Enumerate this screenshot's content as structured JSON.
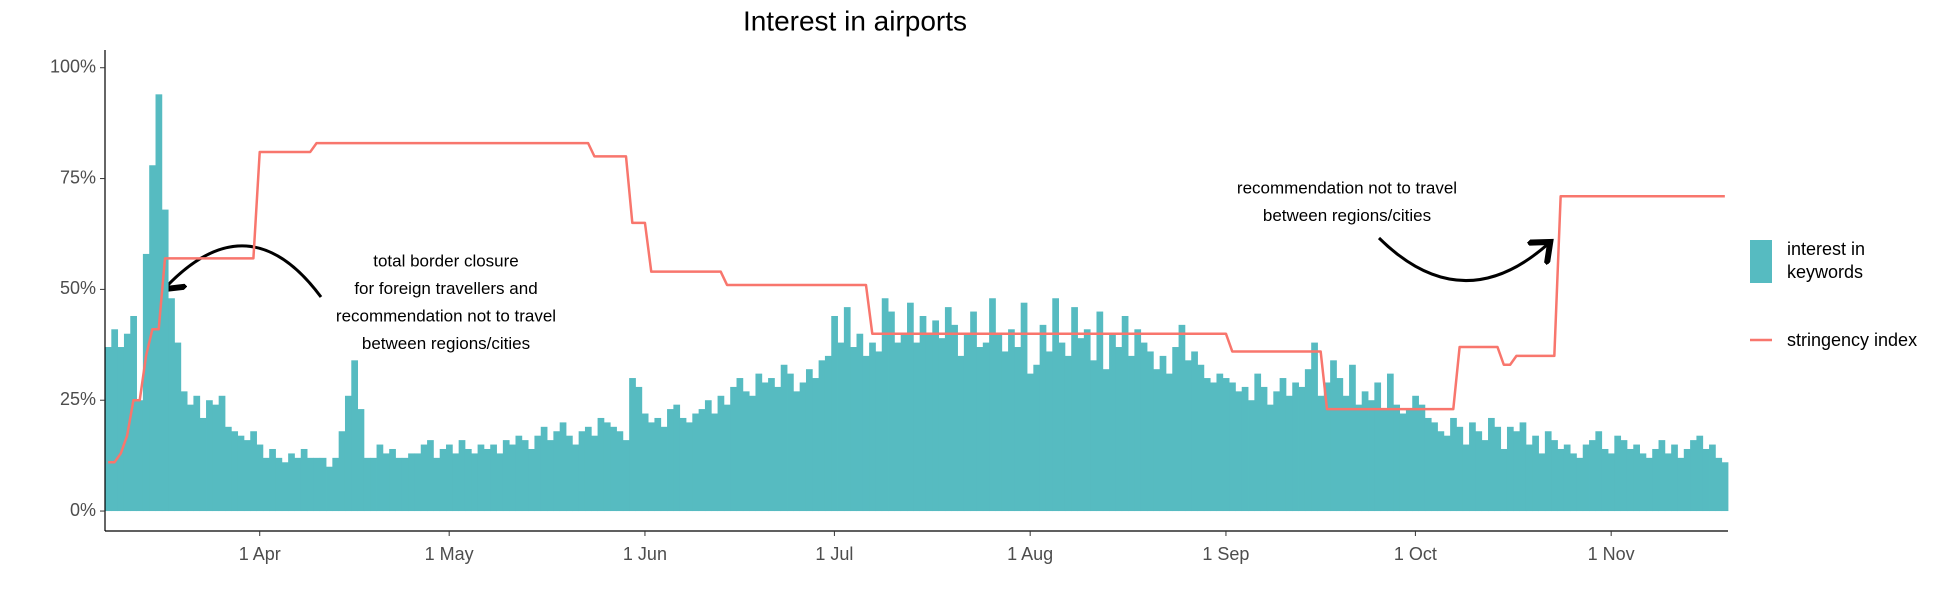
{
  "chart_data": {
    "type": "combo",
    "title": "Interest in airports",
    "x": [
      "03-08",
      "03-09",
      "03-10",
      "03-11",
      "03-12",
      "03-13",
      "03-14",
      "03-15",
      "03-16",
      "03-17",
      "03-18",
      "03-19",
      "03-20",
      "03-21",
      "03-22",
      "03-23",
      "03-24",
      "03-25",
      "03-26",
      "03-27",
      "03-28",
      "03-29",
      "03-30",
      "03-31",
      "04-01",
      "04-02",
      "04-03",
      "04-04",
      "04-05",
      "04-06",
      "04-07",
      "04-08",
      "04-09",
      "04-10",
      "04-11",
      "04-12",
      "04-13",
      "04-14",
      "04-15",
      "04-16",
      "04-17",
      "04-18",
      "04-19",
      "04-20",
      "04-21",
      "04-22",
      "04-23",
      "04-24",
      "04-25",
      "04-26",
      "04-27",
      "04-28",
      "04-29",
      "04-30",
      "05-01",
      "05-02",
      "05-03",
      "05-04",
      "05-05",
      "05-06",
      "05-07",
      "05-08",
      "05-09",
      "05-10",
      "05-11",
      "05-12",
      "05-13",
      "05-14",
      "05-15",
      "05-16",
      "05-17",
      "05-18",
      "05-19",
      "05-20",
      "05-21",
      "05-22",
      "05-23",
      "05-24",
      "05-25",
      "05-26",
      "05-27",
      "05-28",
      "05-29",
      "05-30",
      "05-31",
      "06-01",
      "06-02",
      "06-03",
      "06-04",
      "06-05",
      "06-06",
      "06-07",
      "06-08",
      "06-09",
      "06-10",
      "06-11",
      "06-12",
      "06-13",
      "06-14",
      "06-15",
      "06-16",
      "06-17",
      "06-18",
      "06-19",
      "06-20",
      "06-21",
      "06-22",
      "06-23",
      "06-24",
      "06-25",
      "06-26",
      "06-27",
      "06-28",
      "06-29",
      "06-30",
      "07-01",
      "07-02",
      "07-03",
      "07-04",
      "07-05",
      "07-06",
      "07-07",
      "07-08",
      "07-09",
      "07-10",
      "07-11",
      "07-12",
      "07-13",
      "07-14",
      "07-15",
      "07-16",
      "07-17",
      "07-18",
      "07-19",
      "07-20",
      "07-21",
      "07-22",
      "07-23",
      "07-24",
      "07-25",
      "07-26",
      "07-27",
      "07-28",
      "07-29",
      "07-30",
      "07-31",
      "08-01",
      "08-02",
      "08-03",
      "08-04",
      "08-05",
      "08-06",
      "08-07",
      "08-08",
      "08-09",
      "08-10",
      "08-11",
      "08-12",
      "08-13",
      "08-14",
      "08-15",
      "08-16",
      "08-17",
      "08-18",
      "08-19",
      "08-20",
      "08-21",
      "08-22",
      "08-23",
      "08-24",
      "08-25",
      "08-26",
      "08-27",
      "08-28",
      "08-29",
      "08-30",
      "08-31",
      "09-01",
      "09-02",
      "09-03",
      "09-04",
      "09-05",
      "09-06",
      "09-07",
      "09-08",
      "09-09",
      "09-10",
      "09-11",
      "09-12",
      "09-13",
      "09-14",
      "09-15",
      "09-16",
      "09-17",
      "09-18",
      "09-19",
      "09-20",
      "09-21",
      "09-22",
      "09-23",
      "09-24",
      "09-25",
      "09-26",
      "09-27",
      "09-28",
      "09-29",
      "09-30",
      "10-01",
      "10-02",
      "10-03",
      "10-04",
      "10-05",
      "10-06",
      "10-07",
      "10-08",
      "10-09",
      "10-10",
      "10-11",
      "10-12",
      "10-13",
      "10-14",
      "10-15",
      "10-16",
      "10-17",
      "10-18",
      "10-19",
      "10-20",
      "10-21",
      "10-22",
      "10-23",
      "10-24",
      "10-25",
      "10-26",
      "10-27",
      "10-28",
      "10-29",
      "10-30",
      "10-31",
      "11-01",
      "11-02",
      "11-03",
      "11-04",
      "11-05",
      "11-06",
      "11-07",
      "11-08",
      "11-09",
      "11-10",
      "11-11",
      "11-12",
      "11-13",
      "11-14",
      "11-15",
      "11-16",
      "11-17",
      "11-18",
      "11-19"
    ],
    "series": [
      {
        "name": "interest in keywords",
        "type": "bar",
        "color": "#56bbc1",
        "values": [
          37,
          41,
          37,
          40,
          44,
          25,
          58,
          78,
          94,
          68,
          48,
          38,
          27,
          24,
          26,
          21,
          25,
          24,
          26,
          19,
          18,
          17,
          16,
          18,
          15,
          12,
          14,
          12,
          11,
          13,
          12,
          14,
          12,
          12,
          12,
          10,
          12,
          18,
          26,
          34,
          23,
          12,
          12,
          15,
          13,
          14,
          12,
          12,
          13,
          13,
          15,
          16,
          12,
          14,
          15,
          13,
          16,
          14,
          13,
          15,
          14,
          15,
          13,
          16,
          15,
          17,
          16,
          14,
          17,
          19,
          16,
          18,
          20,
          17,
          15,
          18,
          19,
          17,
          21,
          20,
          19,
          18,
          16,
          30,
          28,
          22,
          20,
          21,
          19,
          23,
          24,
          21,
          20,
          22,
          23,
          25,
          22,
          26,
          24,
          28,
          30,
          27,
          26,
          31,
          29,
          30,
          28,
          33,
          31,
          27,
          29,
          32,
          30,
          34,
          35,
          44,
          38,
          46,
          37,
          40,
          35,
          38,
          36,
          48,
          45,
          38,
          40,
          47,
          38,
          44,
          40,
          43,
          39,
          46,
          42,
          35,
          40,
          45,
          37,
          38,
          48,
          40,
          36,
          41,
          37,
          47,
          31,
          33,
          42,
          36,
          48,
          38,
          35,
          46,
          39,
          41,
          34,
          45,
          32,
          40,
          37,
          44,
          35,
          41,
          38,
          36,
          32,
          35,
          31,
          37,
          42,
          34,
          36,
          33,
          30,
          29,
          31,
          30,
          29,
          27,
          28,
          25,
          31,
          28,
          24,
          27,
          30,
          26,
          29,
          28,
          32,
          38,
          26,
          29,
          34,
          30,
          26,
          33,
          24,
          27,
          25,
          29,
          23,
          31,
          24,
          22,
          23,
          26,
          24,
          21,
          20,
          18,
          17,
          21,
          19,
          15,
          20,
          18,
          16,
          21,
          19,
          14,
          19,
          18,
          20,
          15,
          17,
          13,
          18,
          16,
          14,
          15,
          13,
          12,
          15,
          16,
          18,
          14,
          13,
          17,
          16,
          14,
          15,
          13,
          12,
          14,
          16,
          13,
          15,
          12,
          14,
          16,
          17,
          14,
          15,
          12,
          11
        ]
      },
      {
        "name": "stringency index",
        "type": "line",
        "color": "#f8766d",
        "values": [
          11,
          11,
          13,
          17,
          25,
          25,
          35,
          41,
          41,
          57,
          57,
          57,
          57,
          57,
          57,
          57,
          57,
          57,
          57,
          57,
          57,
          57,
          57,
          57,
          81,
          81,
          81,
          81,
          81,
          81,
          81,
          81,
          81,
          83,
          83,
          83,
          83,
          83,
          83,
          83,
          83,
          83,
          83,
          83,
          83,
          83,
          83,
          83,
          83,
          83,
          83,
          83,
          83,
          83,
          83,
          83,
          83,
          83,
          83,
          83,
          83,
          83,
          83,
          83,
          83,
          83,
          83,
          83,
          83,
          83,
          83,
          83,
          83,
          83,
          83,
          83,
          83,
          80,
          80,
          80,
          80,
          80,
          80,
          65,
          65,
          65,
          54,
          54,
          54,
          54,
          54,
          54,
          54,
          54,
          54,
          54,
          54,
          54,
          51,
          51,
          51,
          51,
          51,
          51,
          51,
          51,
          51,
          51,
          51,
          51,
          51,
          51,
          51,
          51,
          51,
          51,
          51,
          51,
          51,
          51,
          51,
          40,
          40,
          40,
          40,
          40,
          40,
          40,
          40,
          40,
          40,
          40,
          40,
          40,
          40,
          40,
          40,
          40,
          40,
          40,
          40,
          40,
          40,
          40,
          40,
          40,
          40,
          40,
          40,
          40,
          40,
          40,
          40,
          40,
          40,
          40,
          40,
          40,
          40,
          40,
          40,
          40,
          40,
          40,
          40,
          40,
          40,
          40,
          40,
          40,
          40,
          40,
          40,
          40,
          40,
          40,
          40,
          40,
          36,
          36,
          36,
          36,
          36,
          36,
          36,
          36,
          36,
          36,
          36,
          36,
          36,
          36,
          36,
          23,
          23,
          23,
          23,
          23,
          23,
          23,
          23,
          23,
          23,
          23,
          23,
          23,
          23,
          23,
          23,
          23,
          23,
          23,
          23,
          23,
          37,
          37,
          37,
          37,
          37,
          37,
          37,
          33,
          33,
          35,
          35,
          35,
          35,
          35,
          35,
          35,
          71,
          71,
          71,
          71,
          71,
          71,
          71,
          71,
          71,
          71,
          71,
          71,
          71,
          71,
          71,
          71,
          71,
          71,
          71,
          71,
          71,
          71,
          71,
          71,
          71,
          71,
          71
        ]
      }
    ],
    "xlim": [
      "03-08",
      "11-19"
    ],
    "xticks": [
      {
        "value": "04-01",
        "label": "1 Apr"
      },
      {
        "value": "05-01",
        "label": "1 May"
      },
      {
        "value": "06-01",
        "label": "1 Jun"
      },
      {
        "value": "07-01",
        "label": "1 Jul"
      },
      {
        "value": "08-01",
        "label": "1 Aug"
      },
      {
        "value": "09-01",
        "label": "1 Sep"
      },
      {
        "value": "10-01",
        "label": "1 Oct"
      },
      {
        "value": "11-01",
        "label": "1 Nov"
      }
    ],
    "ylim": [
      -4.5,
      104
    ],
    "yticks": [
      {
        "value": 0,
        "label": "0%"
      },
      {
        "value": 25,
        "label": "25%"
      },
      {
        "value": 50,
        "label": "50%"
      },
      {
        "value": 75,
        "label": "75%"
      },
      {
        "value": 100,
        "label": "100%"
      }
    ],
    "grid": false,
    "legend": "right",
    "annotations": [
      {
        "lines": [
          "total border closure",
          "for foreign travellers and",
          "recommendation not to travel",
          "between regions/cities"
        ]
      },
      {
        "lines": [
          "recommendation not to travel",
          "between regions/cities"
        ]
      }
    ]
  }
}
